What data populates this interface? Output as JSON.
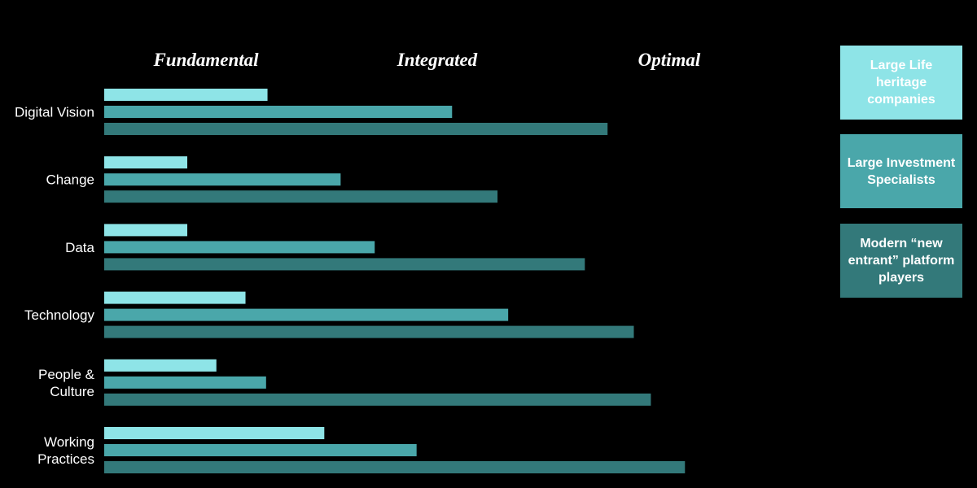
{
  "chart_data": {
    "type": "bar",
    "orientation": "horizontal",
    "scale_labels": [
      "Fundamental",
      "Integrated",
      "Optimal"
    ],
    "categories": [
      "Digital Vision",
      "Change",
      "Data",
      "Technology",
      "People & Culture",
      "Working Practices"
    ],
    "series": [
      {
        "name": "Large Life heritage companies",
        "color": "#8ee4e7",
        "values": [
          23.0,
          11.7,
          11.7,
          19.9,
          15.8,
          31.0
        ]
      },
      {
        "name": "Large Investment Specialists",
        "color": "#4aa7aa",
        "values": [
          49.0,
          33.3,
          38.1,
          56.9,
          22.8,
          44.0
        ]
      },
      {
        "name": "Modern “new entrant” platform players",
        "color": "#33797a",
        "values": [
          70.9,
          55.4,
          67.7,
          74.6,
          77.0,
          81.8
        ]
      }
    ],
    "xlim": [
      0,
      100
    ],
    "grid": false,
    "legend_position": "right"
  },
  "legend": [
    {
      "label": "Large Life heritage companies",
      "color": "#8ee4e7"
    },
    {
      "label": "Large Investment Specialists",
      "color": "#4aa7aa"
    },
    {
      "label": "Modern “new entrant” platform players",
      "color": "#33797a"
    }
  ]
}
